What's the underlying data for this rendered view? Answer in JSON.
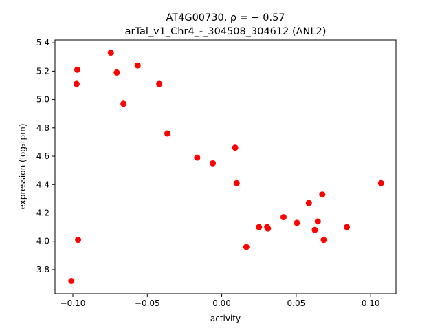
{
  "chart_data": {
    "type": "scatter",
    "title_line1": "AT4G00730, ρ = − 0.57",
    "title_line2": "arTal_v1_Chr4_-_304508_304612 (ANL2)",
    "xlabel": "activity",
    "ylabel": "expression (log₂tpm)",
    "xlim": [
      -0.112,
      0.117
    ],
    "ylim": [
      3.63,
      5.42
    ],
    "xticks": [
      -0.1,
      -0.05,
      0.0,
      0.05,
      0.1
    ],
    "xtick_labels": [
      "−0.10",
      "−0.05",
      "0.00",
      "0.05",
      "0.10"
    ],
    "yticks": [
      3.8,
      4.0,
      4.2,
      4.4,
      4.6,
      4.8,
      5.0,
      5.2,
      5.4
    ],
    "ytick_labels": [
      "3.8",
      "4.0",
      "4.2",
      "4.4",
      "4.6",
      "4.8",
      "5.0",
      "5.2",
      "5.4"
    ],
    "grid": false,
    "marker_color": "#ff0000",
    "points": [
      {
        "x": -0.101,
        "y": 3.72
      },
      {
        "x": -0.097,
        "y": 5.21
      },
      {
        "x": -0.0975,
        "y": 5.11
      },
      {
        "x": -0.0965,
        "y": 4.01
      },
      {
        "x": -0.0745,
        "y": 5.33
      },
      {
        "x": -0.0705,
        "y": 5.19
      },
      {
        "x": -0.066,
        "y": 4.97
      },
      {
        "x": -0.0565,
        "y": 5.24
      },
      {
        "x": -0.042,
        "y": 5.11
      },
      {
        "x": -0.0365,
        "y": 4.76
      },
      {
        "x": -0.0165,
        "y": 4.59
      },
      {
        "x": -0.006,
        "y": 4.55
      },
      {
        "x": 0.009,
        "y": 4.66
      },
      {
        "x": 0.01,
        "y": 4.41
      },
      {
        "x": 0.0165,
        "y": 3.96
      },
      {
        "x": 0.025,
        "y": 4.1
      },
      {
        "x": 0.0305,
        "y": 4.1
      },
      {
        "x": 0.031,
        "y": 4.09
      },
      {
        "x": 0.0415,
        "y": 4.17
      },
      {
        "x": 0.0505,
        "y": 4.13
      },
      {
        "x": 0.0585,
        "y": 4.27
      },
      {
        "x": 0.0625,
        "y": 4.08
      },
      {
        "x": 0.0645,
        "y": 4.14
      },
      {
        "x": 0.0675,
        "y": 4.33
      },
      {
        "x": 0.0685,
        "y": 4.01
      },
      {
        "x": 0.084,
        "y": 4.1
      },
      {
        "x": 0.107,
        "y": 4.41
      }
    ]
  }
}
